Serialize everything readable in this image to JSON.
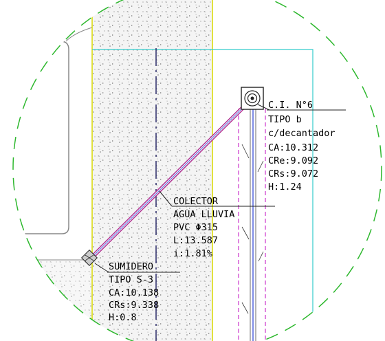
{
  "colors": {
    "boundary_circle": "#2eb82e",
    "building_outline": "#888888",
    "sidewalk_edge": "#d9d900",
    "property_line": "#33cccc",
    "pipe_outer": "#b03090",
    "pipe_inner": "#5566dd",
    "centerline": "#2a2a66",
    "dashed_channel": "#cc33cc",
    "text": "#000000"
  },
  "inspection_chamber": {
    "title": "C.I. N°6",
    "lines": [
      "TIPO b",
      "c/decantador",
      "CA:10.312",
      "CRe:9.092",
      "CRs:9.072",
      "H:1.24"
    ]
  },
  "collector": {
    "title": "COLECTOR",
    "lines": [
      "AGUA LLUVIA",
      "PVC Φ315",
      "L:13.587",
      "i:1.81%"
    ]
  },
  "drain": {
    "title": "SUMIDERO",
    "lines": [
      "TIPO S-3",
      "CA:10.138",
      "CRs:9.338",
      "H:0.8"
    ]
  }
}
